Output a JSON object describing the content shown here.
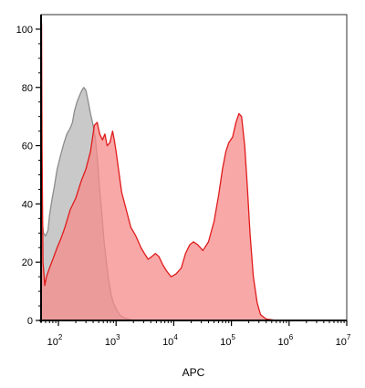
{
  "chart_data": {
    "type": "area",
    "title": "",
    "xlabel": "APC",
    "ylabel": "",
    "x_scale": "log",
    "xlim": [
      50,
      10000000
    ],
    "ylim": [
      0,
      105
    ],
    "y_ticks": [
      {
        "value": 0,
        "label": "0"
      },
      {
        "value": 20,
        "label": "20"
      },
      {
        "value": 40,
        "label": "40"
      },
      {
        "value": 60,
        "label": "60"
      },
      {
        "value": 80,
        "label": "80"
      },
      {
        "value": 100,
        "label": "100"
      }
    ],
    "x_ticks": [
      {
        "value": 100,
        "base": "10",
        "exp": "2"
      },
      {
        "value": 1000,
        "base": "10",
        "exp": "3"
      },
      {
        "value": 10000,
        "base": "10",
        "exp": "4"
      },
      {
        "value": 100000,
        "base": "10",
        "exp": "5"
      },
      {
        "value": 1000000,
        "base": "10",
        "exp": "6"
      },
      {
        "value": 10000000,
        "base": "10",
        "exp": "7"
      }
    ],
    "grid": false,
    "legend": "none",
    "series": [
      {
        "fill": "#c0c0c0",
        "stroke": "#8c8c8c",
        "fill_opacity": 0.85,
        "points": [
          [
            50,
            0
          ],
          [
            50,
            38
          ],
          [
            55,
            30
          ],
          [
            60,
            29
          ],
          [
            66,
            31
          ],
          [
            70,
            36
          ],
          [
            78,
            42
          ],
          [
            85,
            46
          ],
          [
            95,
            52
          ],
          [
            110,
            57
          ],
          [
            125,
            61
          ],
          [
            140,
            64
          ],
          [
            160,
            66
          ],
          [
            175,
            68
          ],
          [
            190,
            72
          ],
          [
            210,
            75
          ],
          [
            230,
            77
          ],
          [
            255,
            79
          ],
          [
            275,
            80
          ],
          [
            300,
            79
          ],
          [
            330,
            75
          ],
          [
            360,
            71
          ],
          [
            400,
            67
          ],
          [
            440,
            62
          ],
          [
            480,
            54
          ],
          [
            520,
            45
          ],
          [
            570,
            36
          ],
          [
            620,
            27
          ],
          [
            680,
            20
          ],
          [
            740,
            14
          ],
          [
            820,
            9
          ],
          [
            900,
            6
          ],
          [
            1000,
            4
          ],
          [
            1150,
            2
          ],
          [
            1350,
            1
          ],
          [
            1600,
            0.5
          ],
          [
            2000,
            0
          ]
        ]
      },
      {
        "fill": "#f78b8b",
        "stroke": "#e01b1b",
        "fill_opacity": 0.75,
        "points": [
          [
            50,
            0
          ],
          [
            50,
            102
          ],
          [
            51,
            102
          ],
          [
            52,
            60
          ],
          [
            54,
            20
          ],
          [
            58,
            12
          ],
          [
            62,
            15
          ],
          [
            70,
            18
          ],
          [
            80,
            21
          ],
          [
            95,
            25
          ],
          [
            110,
            28
          ],
          [
            130,
            32
          ],
          [
            160,
            38
          ],
          [
            200,
            42
          ],
          [
            250,
            48
          ],
          [
            300,
            52
          ],
          [
            360,
            58
          ],
          [
            420,
            67
          ],
          [
            470,
            68
          ],
          [
            520,
            64
          ],
          [
            580,
            62
          ],
          [
            640,
            64
          ],
          [
            700,
            60
          ],
          [
            780,
            61
          ],
          [
            870,
            65
          ],
          [
            930,
            62
          ],
          [
            1000,
            58
          ],
          [
            1100,
            52
          ],
          [
            1250,
            44
          ],
          [
            1500,
            38
          ],
          [
            1800,
            32
          ],
          [
            2200,
            29
          ],
          [
            2700,
            25
          ],
          [
            3100,
            23
          ],
          [
            3600,
            21
          ],
          [
            4200,
            22
          ],
          [
            4800,
            23
          ],
          [
            5500,
            22
          ],
          [
            6500,
            19
          ],
          [
            7500,
            17
          ],
          [
            9000,
            15
          ],
          [
            11000,
            16
          ],
          [
            13500,
            18
          ],
          [
            16000,
            23
          ],
          [
            19000,
            26
          ],
          [
            22000,
            27
          ],
          [
            26000,
            26
          ],
          [
            32000,
            24
          ],
          [
            40000,
            27
          ],
          [
            50000,
            34
          ],
          [
            60000,
            43
          ],
          [
            70000,
            52
          ],
          [
            80000,
            58
          ],
          [
            90000,
            61
          ],
          [
            105000,
            63
          ],
          [
            120000,
            68
          ],
          [
            135000,
            71
          ],
          [
            150000,
            70
          ],
          [
            170000,
            60
          ],
          [
            190000,
            45
          ],
          [
            210000,
            30
          ],
          [
            240000,
            15
          ],
          [
            280000,
            6
          ],
          [
            320000,
            2
          ],
          [
            400000,
            0.5
          ],
          [
            600000,
            0
          ],
          [
            10000000,
            0
          ]
        ]
      }
    ]
  }
}
